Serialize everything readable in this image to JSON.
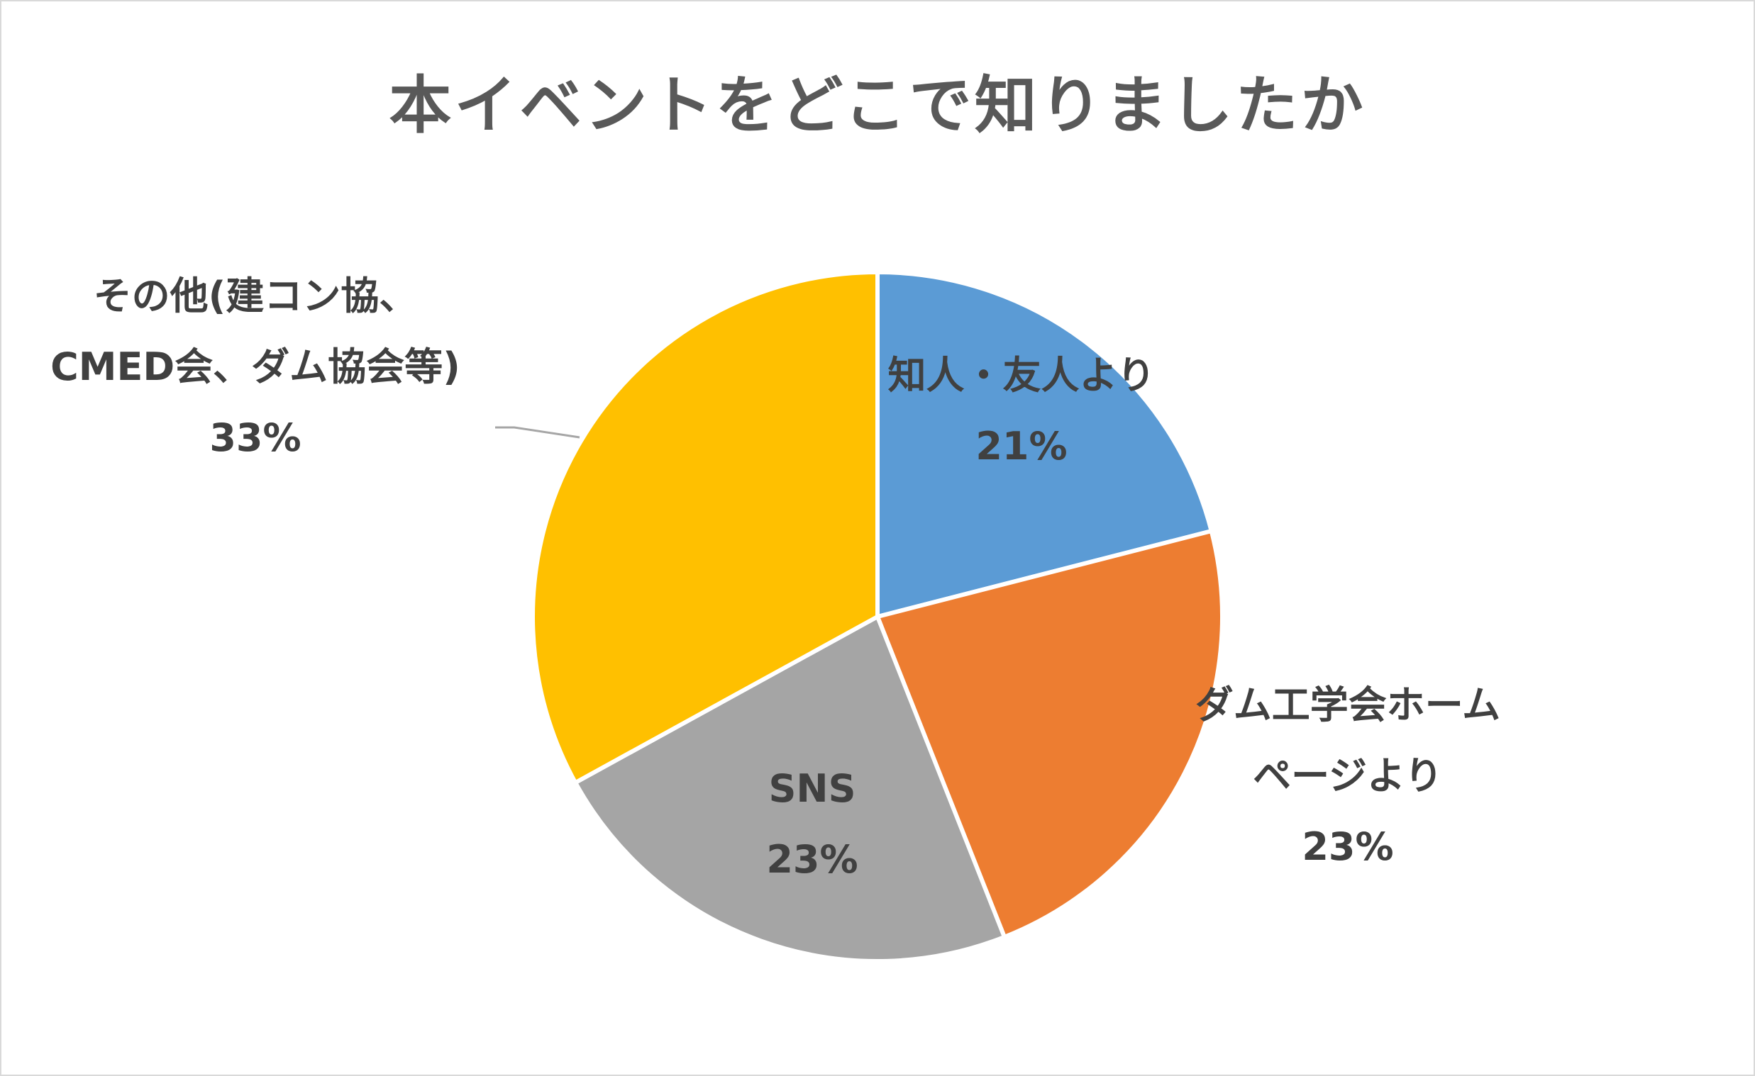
{
  "chart_data": {
    "type": "pie",
    "title": "本イベントをどこで知りましたか",
    "slices": [
      {
        "label_lines": [
          "知人・友人より"
        ],
        "value": 21,
        "value_label": "21%",
        "color": "#5b9bd5"
      },
      {
        "label_lines": [
          "ダム工学会ホーム",
          "ページより"
        ],
        "value": 23,
        "value_label": "23%",
        "color": "#ed7d31"
      },
      {
        "label_lines": [
          "SNS"
        ],
        "value": 23,
        "value_label": "23%",
        "color": "#a5a5a5"
      },
      {
        "label_lines": [
          "その他(建コン協、",
          "CMED会、ダム協会等)"
        ],
        "value": 33,
        "value_label": "33%",
        "color": "#ffc000"
      }
    ],
    "start": "12 o'clock",
    "direction": "clockwise",
    "legend": "none",
    "slice_border_color": "#ffffff",
    "leader_line_color": "#a6a6a6"
  }
}
